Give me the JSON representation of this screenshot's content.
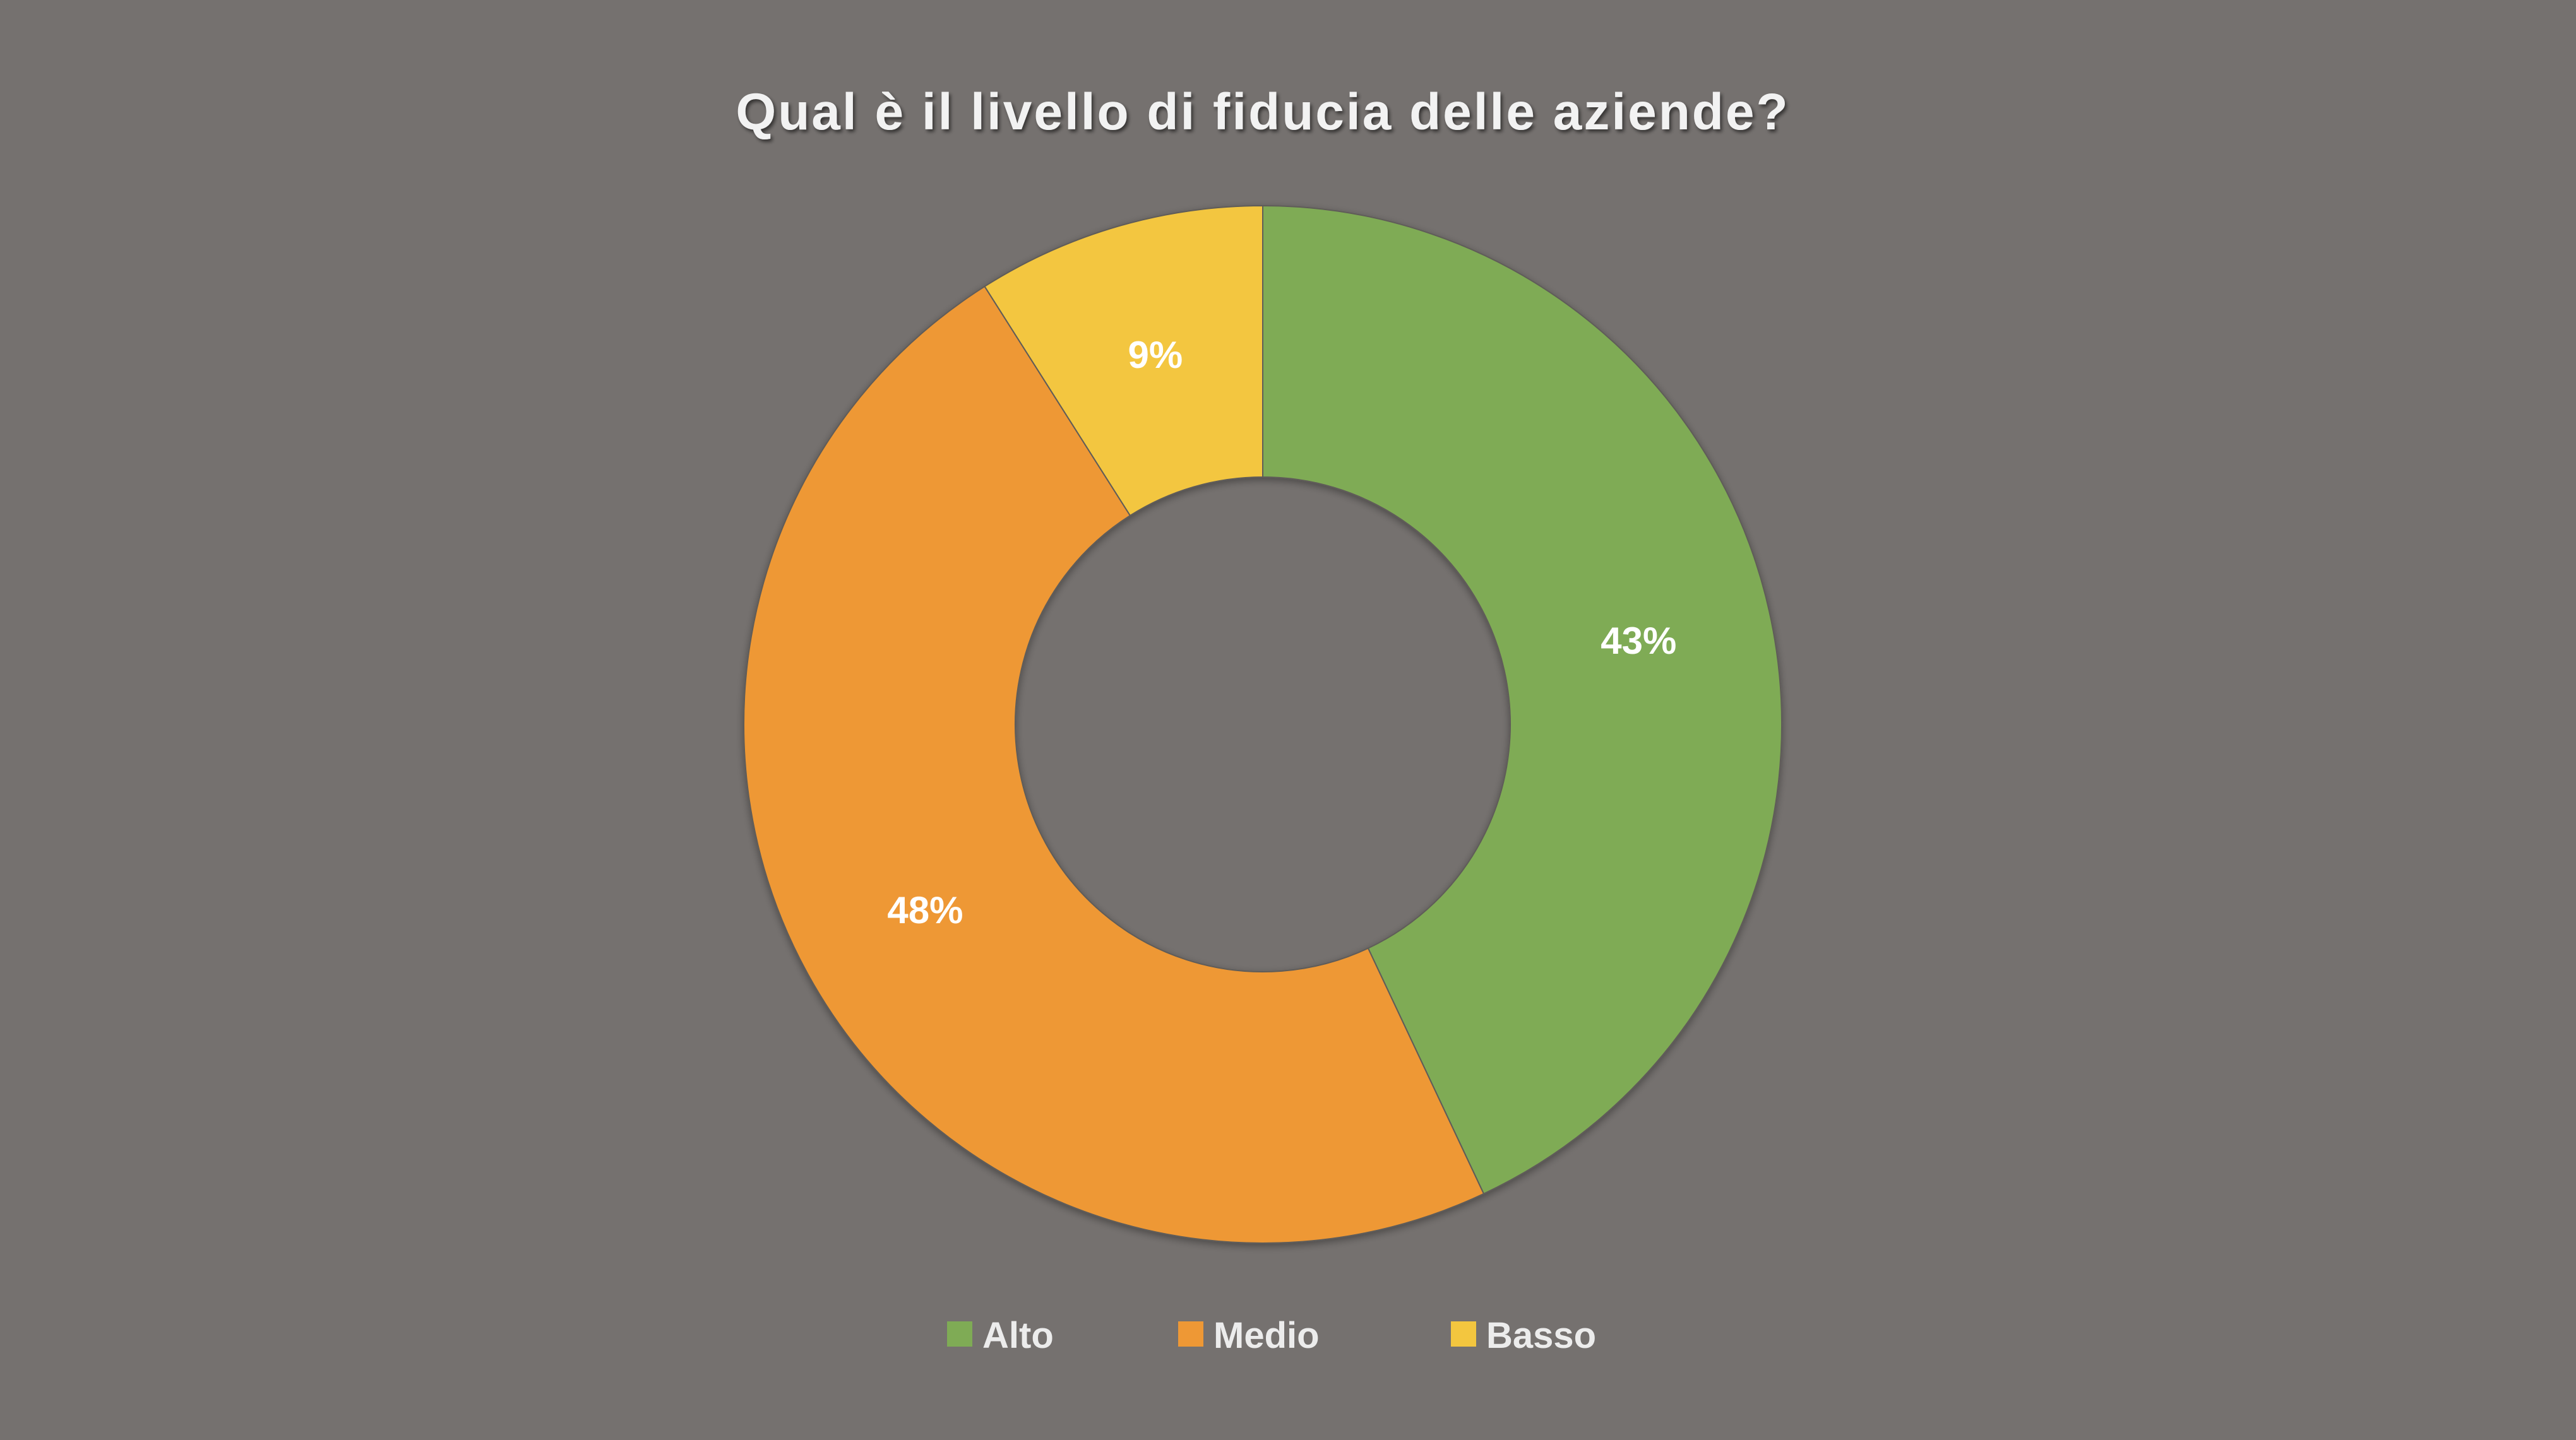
{
  "chart_data": {
    "type": "pie",
    "donut": true,
    "title": "Qual è il livello di fiducia delle aziende?",
    "categories": [
      "Alto",
      "Medio",
      "Basso"
    ],
    "values": [
      43,
      48,
      9
    ],
    "data_labels": [
      "43%",
      "48%",
      "9%"
    ],
    "colors": [
      "#7fab55",
      "#ee9835",
      "#f3c63f"
    ],
    "legend": {
      "position": "bottom",
      "entries": [
        "Alto",
        "Medio",
        "Basso"
      ]
    }
  },
  "background_color": "#75716f"
}
